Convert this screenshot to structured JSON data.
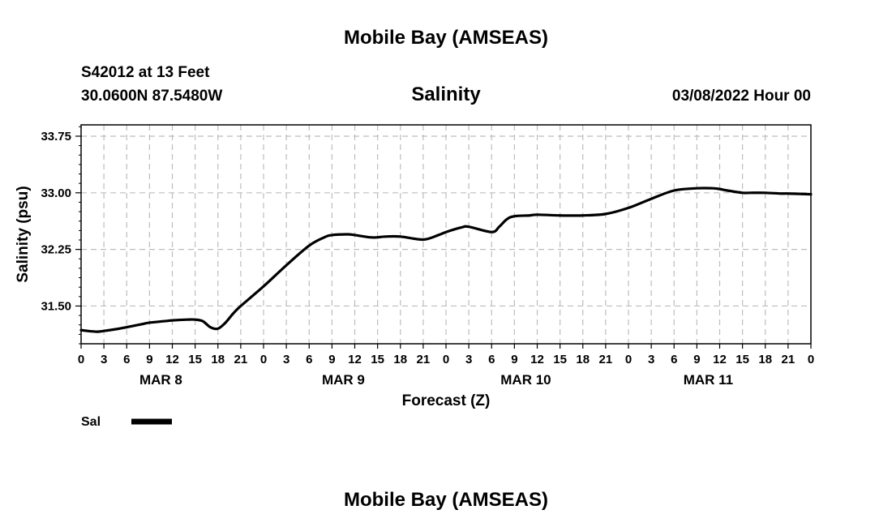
{
  "header": {
    "title": "Mobile Bay (AMSEAS)",
    "station": "S42012 at 13 Feet",
    "location": "30.0600N  87.5480W",
    "datetime": "03/08/2022 Hour 00",
    "footer_title": "Mobile Bay (AMSEAS)"
  },
  "chart_data": {
    "type": "line",
    "title": "Salinity",
    "ylabel": "Salinity (psu)",
    "xlabel": "Forecast (Z)",
    "ylim": [
      31.0,
      33.9
    ],
    "y_ticks": [
      "31.50",
      "32.25",
      "33.00",
      "33.75"
    ],
    "y_tick_values": [
      31.5,
      32.25,
      33.0,
      33.75
    ],
    "x_range_hours": [
      0,
      96
    ],
    "x_tick_labels": [
      "0",
      "3",
      "6",
      "9",
      "12",
      "15",
      "18",
      "21",
      "0",
      "3",
      "6",
      "9",
      "12",
      "15",
      "18",
      "21",
      "0",
      "3",
      "6",
      "9",
      "12",
      "15",
      "18",
      "21",
      "0",
      "3",
      "6",
      "9",
      "12",
      "15",
      "18",
      "21",
      "0"
    ],
    "day_labels": [
      "MAR 8",
      "MAR 9",
      "MAR 10",
      "MAR 11"
    ],
    "grid": true,
    "legend_placement": "bottom-left",
    "series": [
      {
        "name": "Sal",
        "color": "#000000",
        "x_hours": [
          0,
          2,
          3,
          5,
          6,
          8,
          9,
          11,
          12,
          14,
          15,
          16,
          17,
          18,
          19,
          20,
          21,
          24,
          27,
          30,
          32,
          33,
          35,
          36,
          38,
          39,
          40,
          42,
          45,
          47,
          48,
          50,
          51,
          54,
          55,
          56,
          57,
          59,
          60,
          63,
          66,
          69,
          72,
          75,
          78,
          81,
          83,
          84,
          85,
          87,
          88,
          90,
          92,
          93,
          96
        ],
        "values": [
          31.18,
          31.16,
          31.17,
          31.2,
          31.22,
          31.26,
          31.28,
          31.3,
          31.31,
          31.32,
          31.32,
          31.3,
          31.22,
          31.2,
          31.28,
          31.4,
          31.5,
          31.76,
          32.04,
          32.3,
          32.41,
          32.44,
          32.45,
          32.44,
          32.41,
          32.41,
          32.42,
          32.42,
          32.38,
          32.44,
          32.48,
          32.54,
          32.55,
          32.48,
          32.55,
          32.65,
          32.69,
          32.7,
          32.71,
          32.7,
          32.7,
          32.72,
          32.8,
          32.92,
          33.03,
          33.06,
          33.06,
          33.05,
          33.03,
          33.0,
          33.0,
          33.0,
          32.99,
          32.99,
          32.98
        ]
      }
    ]
  }
}
